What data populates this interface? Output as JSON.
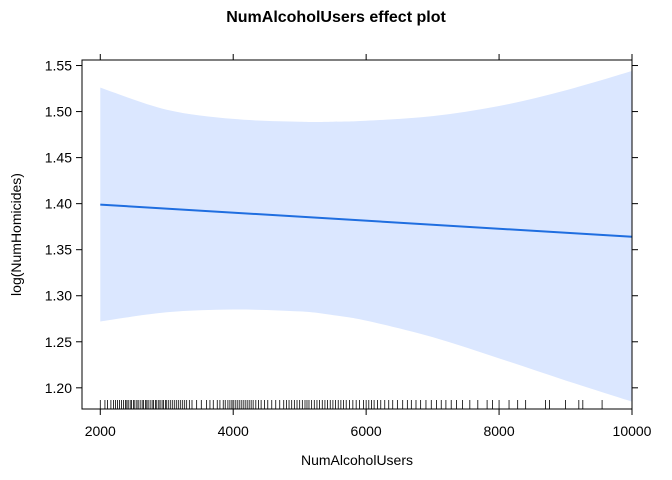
{
  "chart_data": {
    "type": "line",
    "title": "NumAlcoholUsers effect plot",
    "xlabel": "NumAlcoholUsers",
    "ylabel": "log(NumHomicides)",
    "xlim": [
      1725,
      10000
    ],
    "ylim": [
      1.177,
      1.556
    ],
    "x_ticks": [
      2000,
      4000,
      6000,
      8000,
      10000
    ],
    "y_ticks": [
      1.2,
      1.25,
      1.3,
      1.35,
      1.4,
      1.45,
      1.5,
      1.55
    ],
    "y_tick_labels": [
      "1.20",
      "1.25",
      "1.30",
      "1.35",
      "1.40",
      "1.45",
      "1.50",
      "1.55"
    ],
    "grid": false,
    "colors": {
      "line": "#1f6ee0",
      "band": "#dbe7ff",
      "rug": "#000000"
    },
    "series": [
      {
        "x": [
          2000,
          10000
        ],
        "y": [
          1.399,
          1.364
        ]
      }
    ],
    "confidence_band": {
      "x": [
        2000,
        3000,
        4000,
        5000,
        5500,
        6000,
        7000,
        8000,
        9000,
        10000
      ],
      "upper": [
        1.526,
        1.502,
        1.492,
        1.489,
        1.489,
        1.49,
        1.495,
        1.506,
        1.523,
        1.544
      ],
      "lower": [
        1.272,
        1.282,
        1.285,
        1.283,
        1.279,
        1.273,
        1.255,
        1.232,
        1.208,
        1.185
      ]
    },
    "rug_x": [
      2000,
      2070,
      2110,
      2160,
      2200,
      2230,
      2260,
      2290,
      2320,
      2350,
      2380,
      2400,
      2420,
      2450,
      2470,
      2500,
      2520,
      2550,
      2570,
      2600,
      2630,
      2650,
      2680,
      2700,
      2720,
      2750,
      2780,
      2800,
      2830,
      2850,
      2880,
      2900,
      2930,
      2950,
      2980,
      3000,
      3030,
      3060,
      3090,
      3120,
      3150,
      3180,
      3210,
      3240,
      3270,
      3300,
      3340,
      3380,
      3450,
      3520,
      3600,
      3650,
      3700,
      3760,
      3800,
      3850,
      3880,
      3920,
      3950,
      3980,
      4000,
      4030,
      4060,
      4090,
      4120,
      4150,
      4180,
      4210,
      4240,
      4270,
      4300,
      4340,
      4380,
      4420,
      4470,
      4520,
      4580,
      4640,
      4700,
      4760,
      4800,
      4840,
      4880,
      4920,
      4960,
      5000,
      5040,
      5080,
      5110,
      5140,
      5180,
      5220,
      5260,
      5300,
      5340,
      5380,
      5420,
      5460,
      5500,
      5540,
      5580,
      5620,
      5660,
      5700,
      5750,
      5800,
      5850,
      5900,
      5960,
      6000,
      6040,
      6080,
      6120,
      6170,
      6220,
      6280,
      6340,
      6400,
      6470,
      6550,
      6620,
      6680,
      6750,
      6820,
      6900,
      6980,
      7060,
      7130,
      7200,
      7280,
      7360,
      7450,
      7560,
      7680,
      7820,
      7900,
      8000,
      8150,
      8280,
      8400,
      8700,
      8760,
      9000,
      9200,
      9260,
      9550,
      10000
    ]
  }
}
